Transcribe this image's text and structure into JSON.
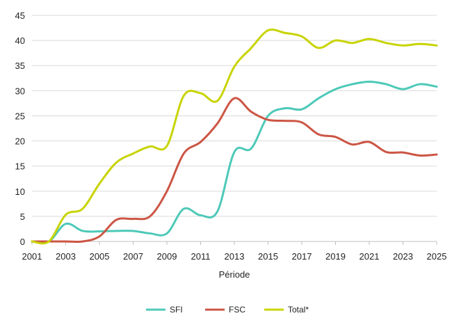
{
  "chart_data": {
    "type": "line",
    "title": "",
    "xlabel": "Période",
    "ylabel": "",
    "xlim": [
      2001,
      2025
    ],
    "ylim": [
      0,
      45
    ],
    "y_ticks": [
      0,
      5,
      10,
      15,
      20,
      25,
      30,
      35,
      40,
      45
    ],
    "x_ticks": [
      2001,
      2003,
      2005,
      2007,
      2009,
      2011,
      2013,
      2015,
      2017,
      2019,
      2021,
      2023,
      2025
    ],
    "grid": "horizontal",
    "legend_position": "bottom",
    "x": [
      2001,
      2002,
      2003,
      2004,
      2005,
      2006,
      2007,
      2008,
      2009,
      2010,
      2011,
      2012,
      2013,
      2014,
      2015,
      2016,
      2017,
      2018,
      2019,
      2020,
      2021,
      2022,
      2023,
      2024,
      2025
    ],
    "series": [
      {
        "name": "SFI",
        "color": "#4dc9b8",
        "values": [
          0,
          0,
          3.5,
          2.1,
          2.0,
          2.1,
          2.1,
          1.6,
          1.6,
          6.5,
          5.2,
          6.0,
          17.8,
          18.5,
          25.0,
          26.5,
          26.3,
          28.5,
          30.3,
          31.3,
          31.8,
          31.3,
          30.3,
          31.3,
          30.8
        ]
      },
      {
        "name": "FSC",
        "color": "#cc5544",
        "values": [
          0,
          0,
          0,
          0,
          1.0,
          4.3,
          4.5,
          5.0,
          10.0,
          17.5,
          19.8,
          23.5,
          28.5,
          25.8,
          24.2,
          24.0,
          23.7,
          21.3,
          20.8,
          19.3,
          19.8,
          17.8,
          17.7,
          17.1,
          17.3
        ]
      },
      {
        "name": "Total*",
        "color": "#c8d400",
        "values": [
          0,
          0,
          5.3,
          6.5,
          11.5,
          15.7,
          17.5,
          18.9,
          19.0,
          29.0,
          29.5,
          28.0,
          34.8,
          38.5,
          42.0,
          41.5,
          40.8,
          38.5,
          40.0,
          39.5,
          40.3,
          39.5,
          39.0,
          39.3,
          39.0
        ]
      }
    ]
  }
}
